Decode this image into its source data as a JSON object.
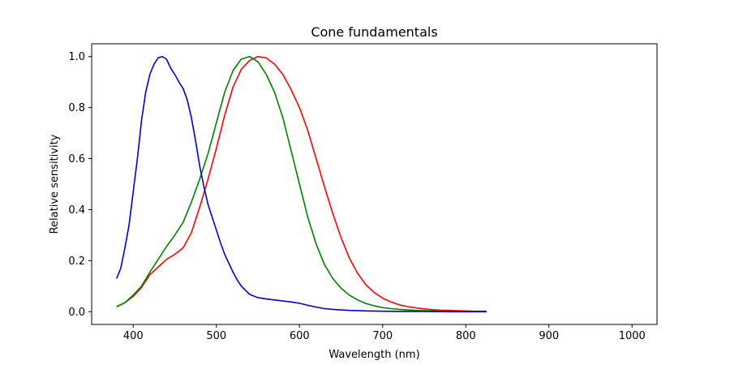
{
  "chart_data": {
    "type": "line",
    "title": "Cone fundamentals",
    "xlabel": "Wavelength (nm)",
    "ylabel": "Relative sensitivity",
    "xlim": [
      350,
      1030
    ],
    "ylim": [
      -0.05,
      1.05
    ],
    "xticks": [
      400,
      500,
      600,
      700,
      800,
      900,
      1000
    ],
    "yticks": [
      0.0,
      0.2,
      0.4,
      0.6,
      0.8,
      1.0
    ],
    "xtick_labels": [
      "400",
      "500",
      "600",
      "700",
      "800",
      "900",
      "1000"
    ],
    "ytick_labels": [
      "0.0",
      "0.2",
      "0.4",
      "0.6",
      "0.8",
      "1.0"
    ],
    "grid": false,
    "legend": null,
    "series": [
      {
        "color": "#ff0000",
        "x": [
          380,
          390,
          400,
          410,
          420,
          430,
          440,
          450,
          460,
          470,
          480,
          490,
          500,
          510,
          520,
          530,
          540,
          550,
          560,
          570,
          580,
          590,
          600,
          610,
          620,
          630,
          640,
          650,
          660,
          670,
          680,
          690,
          700,
          710,
          720,
          730,
          740,
          750,
          760,
          770,
          780,
          790,
          800,
          810,
          825
        ],
        "y": [
          0.02,
          0.035,
          0.06,
          0.095,
          0.145,
          0.175,
          0.205,
          0.225,
          0.25,
          0.31,
          0.41,
          0.52,
          0.64,
          0.77,
          0.88,
          0.95,
          0.985,
          1.0,
          0.995,
          0.97,
          0.93,
          0.87,
          0.8,
          0.71,
          0.6,
          0.49,
          0.385,
          0.29,
          0.21,
          0.15,
          0.105,
          0.075,
          0.053,
          0.038,
          0.027,
          0.02,
          0.015,
          0.011,
          0.008,
          0.006,
          0.005,
          0.004,
          0.003,
          0.002,
          0.002
        ]
      },
      {
        "color": "#008000",
        "x": [
          380,
          390,
          400,
          410,
          420,
          430,
          440,
          450,
          460,
          470,
          480,
          490,
          500,
          510,
          520,
          530,
          540,
          550,
          560,
          570,
          580,
          590,
          600,
          610,
          620,
          630,
          640,
          650,
          660,
          670,
          680,
          690,
          700,
          710,
          720,
          730,
          740,
          750,
          760,
          770,
          780,
          790,
          800,
          810,
          825
        ],
        "y": [
          0.02,
          0.035,
          0.065,
          0.1,
          0.155,
          0.205,
          0.255,
          0.3,
          0.35,
          0.43,
          0.52,
          0.62,
          0.74,
          0.86,
          0.945,
          0.99,
          1.0,
          0.98,
          0.93,
          0.86,
          0.76,
          0.63,
          0.5,
          0.37,
          0.265,
          0.185,
          0.13,
          0.092,
          0.065,
          0.046,
          0.032,
          0.023,
          0.016,
          0.012,
          0.009,
          0.007,
          0.005,
          0.004,
          0.003,
          0.002,
          0.002,
          0.001,
          0.001,
          0.001,
          0.001
        ]
      },
      {
        "color": "#0000cc",
        "x": [
          380,
          385,
          390,
          395,
          400,
          405,
          410,
          415,
          420,
          425,
          430,
          435,
          440,
          445,
          450,
          455,
          460,
          465,
          470,
          475,
          480,
          485,
          490,
          495,
          500,
          505,
          510,
          515,
          520,
          525,
          530,
          540,
          550,
          560,
          570,
          580,
          590,
          600,
          610,
          620,
          630,
          640,
          650,
          660,
          680,
          700,
          720,
          750,
          780,
          800,
          825
        ],
        "y": [
          0.13,
          0.17,
          0.25,
          0.34,
          0.47,
          0.6,
          0.75,
          0.86,
          0.93,
          0.97,
          0.995,
          1.0,
          0.99,
          0.955,
          0.93,
          0.9,
          0.875,
          0.83,
          0.76,
          0.67,
          0.57,
          0.49,
          0.42,
          0.37,
          0.32,
          0.27,
          0.225,
          0.19,
          0.155,
          0.125,
          0.1,
          0.068,
          0.055,
          0.05,
          0.046,
          0.042,
          0.038,
          0.033,
          0.025,
          0.018,
          0.012,
          0.009,
          0.007,
          0.005,
          0.003,
          0.002,
          0.001,
          0.001,
          0.0,
          0.0,
          0.0
        ]
      }
    ]
  }
}
